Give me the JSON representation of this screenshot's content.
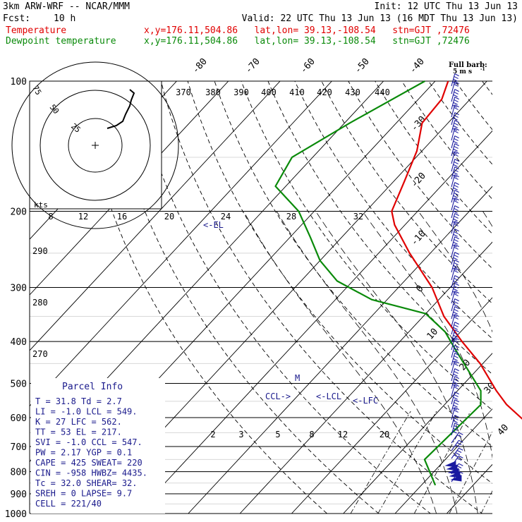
{
  "header": {
    "model": "3km ARW-WRF -- NCAR/MMM",
    "init": "Init: 12 UTC Thu 13 Jun 13",
    "fcst_label": "Fcst:",
    "fcst_value": "10 h",
    "valid": "Valid: 22 UTC Thu 13 Jun 13 (16 MDT Thu 13 Jun 13)",
    "temp_label": "Temperature",
    "temp_info": "x,y=176.11,504.86   lat,lon= 39.13,-108.54   stn=GJT ,72476",
    "dew_label": "Dewpoint temperature",
    "dew_info": "x,y=176.11,504.86   lat,lon= 39.13,-108.54   stn=GJT ,72476"
  },
  "colors": {
    "temperature": "#e00000",
    "dewpoint": "#0a8a0a",
    "info": "#1a1a8c",
    "grid": "#000000"
  },
  "barb_legend": {
    "title": "Full barb:",
    "value": "5 m s",
    "unit_exp": "-1"
  },
  "hodograph": {
    "units_label": "kts",
    "ring_labels": [
      "75",
      "50",
      "25"
    ]
  },
  "parcel_info": {
    "title": "Parcel Info",
    "rows": [
      "T  =   31.8  Td =   2.7",
      "LI =   -1.0  LCL =  549.",
      "K  =     27  LFC =  562.",
      "TT =     53  EL  =  217.",
      "SVI =  -1.0  CCL =  547.",
      "PW =   2.17  YGP =   0.1",
      "CAPE =  425  SWEAT=  220",
      "CIN =  -958  HWBZ= 4435.",
      "Tc =   32.0  SHEAR=  32.",
      "SREH =    0  LAPSE=  9.7",
      "CELL = 221/40"
    ]
  },
  "level_labels": {
    "el": "<-EL",
    "ccl": "CCL->",
    "lcl": "<-LCL",
    "lfc": "<-LFC",
    "m": "M"
  },
  "chart_data": {
    "type": "line",
    "title": "",
    "xlabel": "",
    "ylabel": "",
    "pressure_levels": [
      {
        "p": 100,
        "label": "100"
      },
      {
        "p": 200,
        "label": "200"
      },
      {
        "p": 300,
        "label": "300"
      },
      {
        "p": 400,
        "label": "400"
      },
      {
        "p": 500,
        "label": "500"
      },
      {
        "p": 600,
        "label": "600"
      },
      {
        "p": 700,
        "label": "700"
      },
      {
        "p": 800,
        "label": "800"
      },
      {
        "p": 900,
        "label": "900"
      },
      {
        "p": 1000,
        "label": "1000"
      }
    ],
    "ylim": [
      1000,
      100
    ],
    "isotherms": [
      {
        "t": -80,
        "label": "-80"
      },
      {
        "t": -70,
        "label": "-70"
      },
      {
        "t": -60,
        "label": "-60"
      },
      {
        "t": -50,
        "label": "-50"
      },
      {
        "t": -40,
        "label": "-40"
      },
      {
        "t": -30,
        "label": "-30"
      },
      {
        "t": -20,
        "label": "-20"
      },
      {
        "t": -10,
        "label": "-10"
      },
      {
        "t": 0,
        "label": "0"
      },
      {
        "t": 10,
        "label": "10"
      },
      {
        "t": 20,
        "label": "20"
      },
      {
        "t": 30,
        "label": "30"
      },
      {
        "t": 40,
        "label": "40"
      }
    ],
    "theta_labels": [
      {
        "theta": 370,
        "label": "370"
      },
      {
        "theta": 380,
        "label": "380"
      },
      {
        "theta": 390,
        "label": "390"
      },
      {
        "theta": 400,
        "label": "400"
      },
      {
        "theta": 410,
        "label": "410"
      },
      {
        "theta": 420,
        "label": "420"
      },
      {
        "theta": 430,
        "label": "430"
      },
      {
        "theta": 440,
        "label": "440"
      }
    ],
    "theta_side_labels": [
      {
        "theta": 290,
        "label": "290"
      },
      {
        "theta": 280,
        "label": "280"
      },
      {
        "theta": 270,
        "label": "270"
      }
    ],
    "mixing_ratio_labels": [
      {
        "w": 2,
        "label": "2"
      },
      {
        "w": 3,
        "label": "3"
      },
      {
        "w": 5,
        "label": "5"
      },
      {
        "w": 8,
        "label": "8"
      },
      {
        "w": 12,
        "label": "12"
      },
      {
        "w": 20,
        "label": "20"
      }
    ],
    "hodo_speed_labels": [
      {
        "v": 8,
        "label": "8"
      },
      {
        "v": 12,
        "label": "12"
      },
      {
        "v": 16,
        "label": "16"
      },
      {
        "v": 20,
        "label": "20"
      },
      {
        "v": 24,
        "label": "24"
      },
      {
        "v": 28,
        "label": "28"
      },
      {
        "v": 32,
        "label": "32"
      }
    ],
    "series": [
      {
        "name": "Temperature",
        "points": [
          {
            "p": 860,
            "t": 33.0
          },
          {
            "p": 800,
            "t": 27.5
          },
          {
            "p": 700,
            "t": 17.5
          },
          {
            "p": 620,
            "t": 9.5
          },
          {
            "p": 560,
            "t": 2.0
          },
          {
            "p": 520,
            "t": -2.5
          },
          {
            "p": 450,
            "t": -10.5
          },
          {
            "p": 400,
            "t": -18.0
          },
          {
            "p": 350,
            "t": -26.0
          },
          {
            "p": 300,
            "t": -33.5
          },
          {
            "p": 250,
            "t": -44.0
          },
          {
            "p": 215,
            "t": -52.0
          },
          {
            "p": 200,
            "t": -55.0
          },
          {
            "p": 170,
            "t": -58.0
          },
          {
            "p": 145,
            "t": -61.0
          },
          {
            "p": 125,
            "t": -65.0
          },
          {
            "p": 110,
            "t": -65.5
          },
          {
            "p": 100,
            "t": -67.5
          }
        ]
      },
      {
        "name": "Dewpoint temperature",
        "points": [
          {
            "p": 860,
            "t": 2.7
          },
          {
            "p": 750,
            "t": -4.0
          },
          {
            "p": 650,
            "t": -3.5
          },
          {
            "p": 560,
            "t": -3.0
          },
          {
            "p": 520,
            "t": -5.5
          },
          {
            "p": 480,
            "t": -10.0
          },
          {
            "p": 420,
            "t": -17.5
          },
          {
            "p": 380,
            "t": -23.0
          },
          {
            "p": 345,
            "t": -30.0
          },
          {
            "p": 320,
            "t": -43.0
          },
          {
            "p": 290,
            "t": -53.0
          },
          {
            "p": 260,
            "t": -60.0
          },
          {
            "p": 230,
            "t": -66.0
          },
          {
            "p": 200,
            "t": -73.0
          },
          {
            "p": 175,
            "t": -82.0
          },
          {
            "p": 150,
            "t": -84.0
          },
          {
            "p": 125,
            "t": -79.0
          },
          {
            "p": 100,
            "t": -72.0
          }
        ]
      }
    ]
  }
}
